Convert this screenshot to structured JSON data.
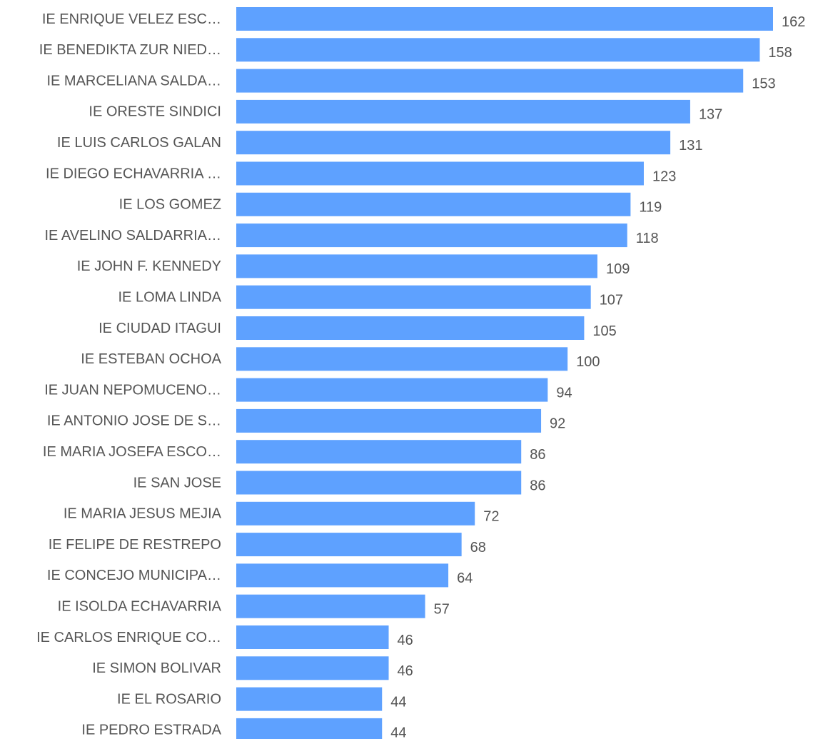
{
  "chart_data": {
    "type": "barh",
    "categories": [
      "IE ENRIQUE VELEZ ESC…",
      "IE BENEDIKTA ZUR NIED…",
      "IE MARCELIANA SALDA…",
      "IE ORESTE SINDICI",
      "IE LUIS CARLOS GALAN",
      "IE DIEGO ECHAVARRIA …",
      "IE LOS GOMEZ",
      "IE AVELINO SALDARRIA…",
      "IE JOHN F. KENNEDY",
      "IE LOMA LINDA",
      "IE CIUDAD ITAGUI",
      "IE ESTEBAN OCHOA",
      "IE JUAN NEPOMUCENO…",
      "IE ANTONIO JOSE DE S…",
      "IE MARIA JOSEFA ESCO…",
      "IE SAN JOSE",
      "IE MARIA JESUS MEJIA",
      "IE FELIPE DE RESTREPO",
      "IE CONCEJO MUNICIPA…",
      "IE ISOLDA ECHAVARRIA",
      "IE CARLOS ENRIQUE CO…",
      "IE SIMON BOLIVAR",
      "IE EL ROSARIO",
      "IE PEDRO ESTRADA"
    ],
    "values": [
      162,
      158,
      153,
      137,
      131,
      123,
      119,
      118,
      109,
      107,
      105,
      100,
      94,
      92,
      86,
      86,
      72,
      68,
      64,
      57,
      46,
      46,
      44,
      44
    ],
    "color": "#5ea1ff",
    "xlim": [
      0,
      162
    ]
  }
}
